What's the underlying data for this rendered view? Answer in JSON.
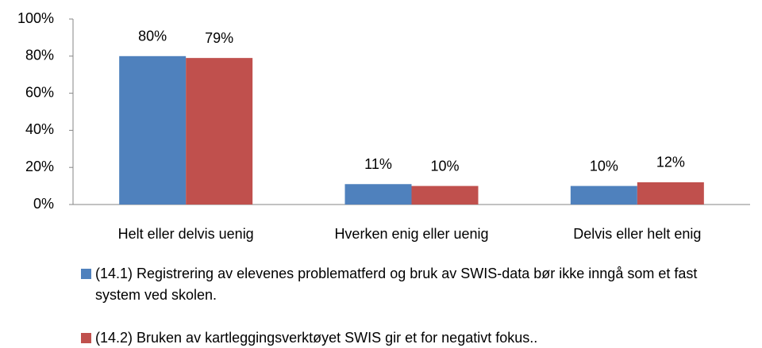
{
  "chart_data": {
    "type": "bar",
    "categories": [
      "Helt eller delvis uenig",
      "Hverken enig eller uenig",
      "Delvis eller helt enig"
    ],
    "series": [
      {
        "name": "(14.1) Registrering av elevenes problematferd og bruk av SWIS-data bør ikke inngå som et fast system ved skolen.",
        "color": "#4f81bd",
        "values": [
          80,
          11,
          10
        ],
        "value_labels": [
          "80%",
          "11%",
          "10%"
        ]
      },
      {
        "name": "(14.2) Bruken av kartleggingsverktøyet SWIS gir et for negativt fokus..",
        "color": "#c0504d",
        "values": [
          79,
          10,
          12
        ],
        "value_labels": [
          "79%",
          "10%",
          "12%"
        ]
      }
    ],
    "ylim": [
      0,
      100
    ],
    "yticks": [
      {
        "value": 0,
        "label": "0%"
      },
      {
        "value": 20,
        "label": "20%"
      },
      {
        "value": 40,
        "label": "40%"
      },
      {
        "value": 60,
        "label": "60%"
      },
      {
        "value": 80,
        "label": "80%"
      },
      {
        "value": 100,
        "label": "100%"
      }
    ],
    "legend": "bottom"
  }
}
